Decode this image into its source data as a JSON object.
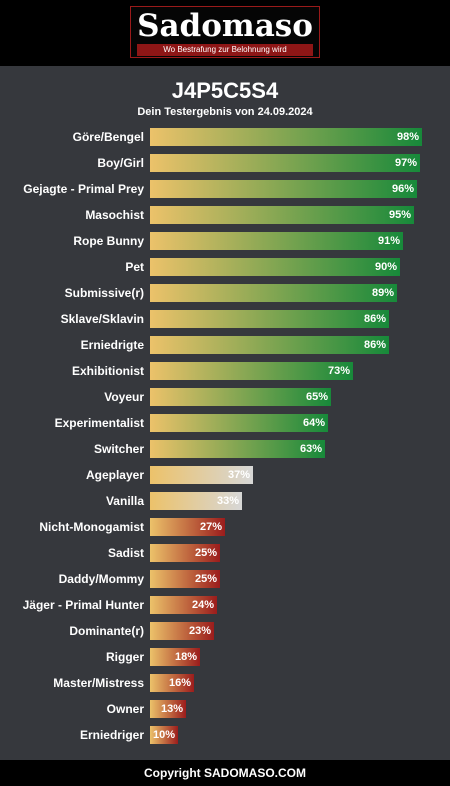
{
  "header": {
    "logo_text": "Sadomaso",
    "logo_tagline": "Wo Bestrafung zur Belohnung wird"
  },
  "page": {
    "title": "J4P5C5S4",
    "subtitle": "Dein Testergebnis von 24.09.2024"
  },
  "footer": {
    "text": "Copyright SADOMASO.COM"
  },
  "colors": {
    "bar_start": "#ecc26a",
    "high": "#17893a",
    "mid": "#d7d7d7",
    "low": "#9b1c1c"
  },
  "chart_data": {
    "type": "bar",
    "orientation": "horizontal",
    "xlim": [
      0,
      100
    ],
    "unit": "%",
    "grid": false,
    "categories": [
      "Göre/Bengel",
      "Boy/Girl",
      "Gejagte - Primal Prey",
      "Masochist",
      "Rope Bunny",
      "Pet",
      "Submissive(r)",
      "Sklave/Sklavin",
      "Erniedrigte",
      "Exhibitionist",
      "Voyeur",
      "Experimentalist",
      "Switcher",
      "Ageplayer",
      "Vanilla",
      "Nicht-Monogamist",
      "Sadist",
      "Daddy/Mommy",
      "Jäger - Primal Hunter",
      "Dominante(r)",
      "Rigger",
      "Master/Mistress",
      "Owner",
      "Erniedriger"
    ],
    "values": [
      98,
      97,
      96,
      95,
      91,
      90,
      89,
      86,
      86,
      73,
      65,
      64,
      63,
      37,
      33,
      27,
      25,
      25,
      24,
      23,
      18,
      16,
      13,
      10
    ]
  }
}
